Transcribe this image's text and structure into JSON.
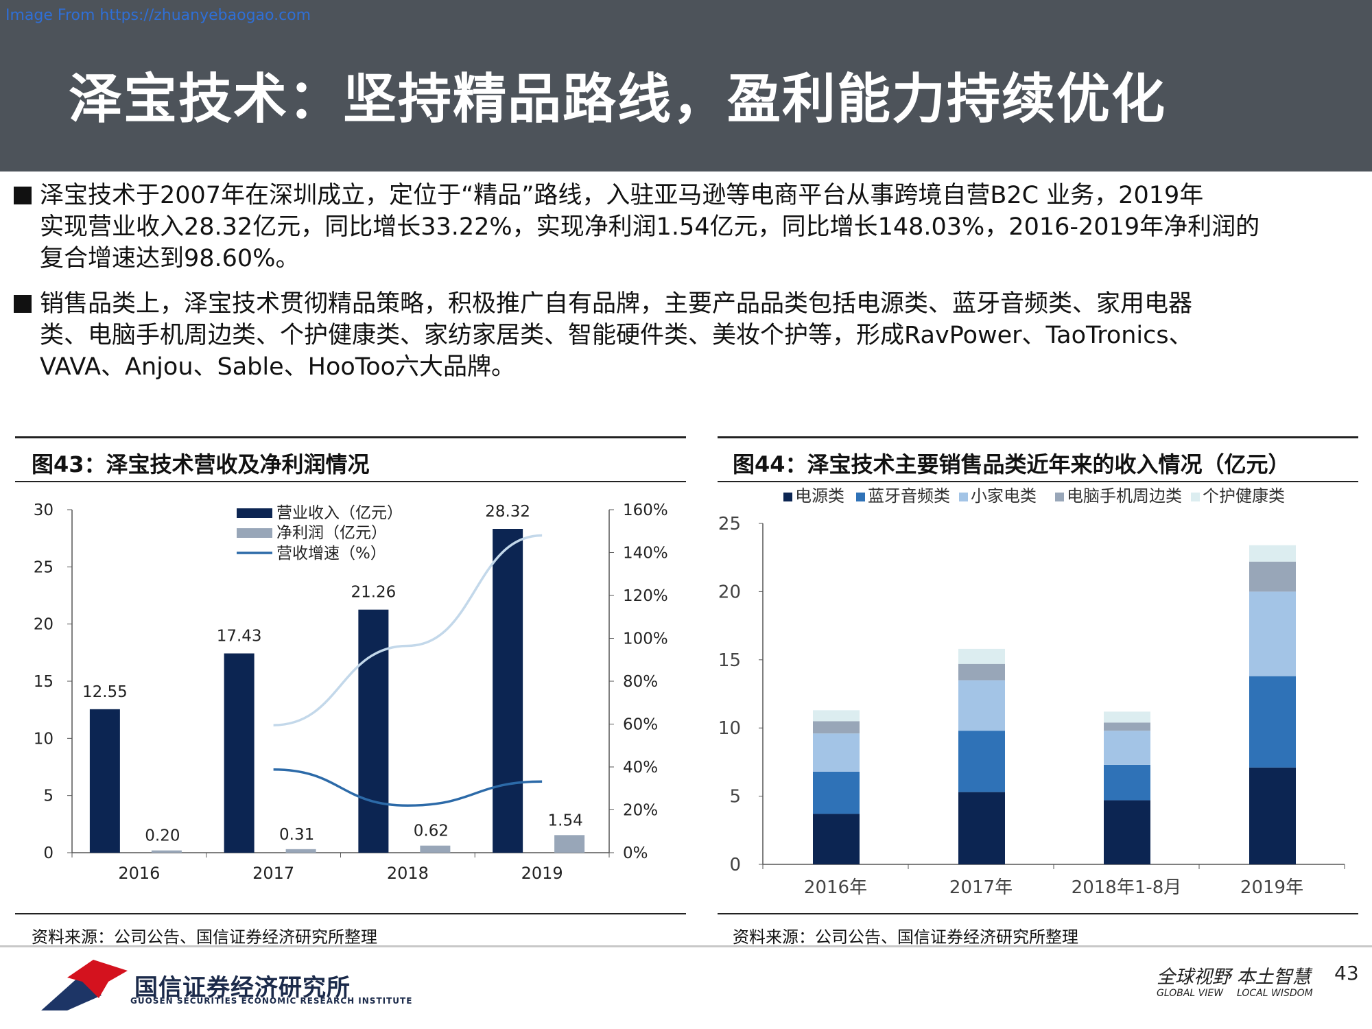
{
  "watermark": "Image From https://zhuanyebaogao.com",
  "slide_title": "泽宝技术：坚持精品路线，盈利能力持续优化",
  "paragraphs": [
    {
      "lines": [
        "泽宝技术于2007年在深圳成立，定位于“精品”路线，入驻亚马逊等电商平台从事跨境自营B2C 业务，2019年",
        "实现营业收入28.32亿元，同比增长33.22%，实现净利润1.54亿元，同比增长148.03%，2016-2019年净利润的",
        "复合增速达到98.60%。"
      ]
    },
    {
      "lines": [
        "销售品类上，泽宝技术贯彻精品策略，积极推广自有品牌，主要产品品类包括电源类、蓝牙音频类、家用电器",
        "类、电脑手机周边类、个护健康类、家纺家居类、智能硬件类、美妆个护等，形成RavPower、TaoTronics、",
        "VAVA、Anjou、Sable、HooToo六大品牌。"
      ]
    }
  ],
  "left_panel": {
    "title": "图43：泽宝技术营收及净利润情况",
    "source": "资料来源：公司公告、国信证券经济研究所整理"
  },
  "right_panel": {
    "title": "图44：泽宝技术主要销售品类近年来的收入情况（亿元）",
    "source": "资料来源：公司公告、国信证券经济研究所整理"
  },
  "footer": {
    "company": "国信证券经济研究所",
    "company_en": "GUOSEN SECURITIES ECONOMIC RESEARCH INSTITUTE",
    "slogan": "全球视野 本土智慧",
    "slogan_en_left": "GLOBAL VIEW",
    "slogan_en_right": "LOCAL WISDOM",
    "page": "43"
  },
  "colors": {
    "header_bg": "#4d535a",
    "revenue": "#0c2552",
    "profit": "#98a6b8",
    "growth_line": "#2c6aa8",
    "growth_line_light": "#c3d8ea"
  },
  "chart_data": [
    {
      "type": "bar",
      "categories": [
        "2016",
        "2017",
        "2018",
        "2019"
      ],
      "series": [
        {
          "name": "营业收入（亿元）",
          "type": "bar",
          "axis": "left",
          "color": "#0c2552",
          "values": [
            12.55,
            17.43,
            21.26,
            28.32
          ],
          "labels": [
            "12.55",
            "17.43",
            "21.26",
            "28.32"
          ]
        },
        {
          "name": "净利润（亿元）",
          "type": "bar",
          "axis": "left",
          "color": "#98a6b8",
          "values": [
            0.2,
            0.31,
            0.62,
            1.54
          ],
          "labels": [
            "0.20",
            "0.31",
            "0.62",
            "1.54"
          ]
        },
        {
          "name": "营收增速（%）",
          "type": "line",
          "axis": "right",
          "color": "#2c6aa8",
          "values": [
            null,
            38.8,
            22.0,
            33.2
          ]
        },
        {
          "name": "",
          "type": "line",
          "axis": "right",
          "color": "#c3d8ea",
          "values": [
            null,
            59.5,
            96.5,
            148.0
          ]
        }
      ],
      "y_left": {
        "ylim": [
          0,
          30
        ],
        "ticks": [
          "0",
          "5",
          "10",
          "15",
          "20",
          "25",
          "30"
        ]
      },
      "y_right": {
        "ylim": [
          0,
          160
        ],
        "ticks": [
          "0%",
          "20%",
          "40%",
          "60%",
          "80%",
          "100%",
          "120%",
          "140%",
          "160%"
        ]
      },
      "legend": "top-center"
    },
    {
      "type": "bar",
      "stacked": true,
      "categories": [
        "2016年",
        "2017年",
        "2018年1-8月",
        "2019年"
      ],
      "series": [
        {
          "name": "电源类",
          "color": "#0c2552",
          "values": [
            3.7,
            5.3,
            4.7,
            7.1
          ]
        },
        {
          "name": "蓝牙音频类",
          "color": "#2f72b7",
          "values": [
            3.1,
            4.5,
            2.6,
            6.7
          ]
        },
        {
          "name": "小家电类",
          "color": "#a3c4e6",
          "values": [
            2.8,
            3.7,
            2.5,
            6.2
          ]
        },
        {
          "name": "电脑手机周边类",
          "color": "#98a6b8",
          "values": [
            0.9,
            1.2,
            0.6,
            2.2
          ]
        },
        {
          "name": "个护健康类",
          "color": "#dcedf0",
          "values": [
            0.8,
            1.1,
            0.8,
            1.2
          ]
        }
      ],
      "ylim": [
        0,
        25
      ],
      "y_ticks": [
        "0",
        "5",
        "10",
        "15",
        "20",
        "25"
      ],
      "legend": "top"
    }
  ]
}
